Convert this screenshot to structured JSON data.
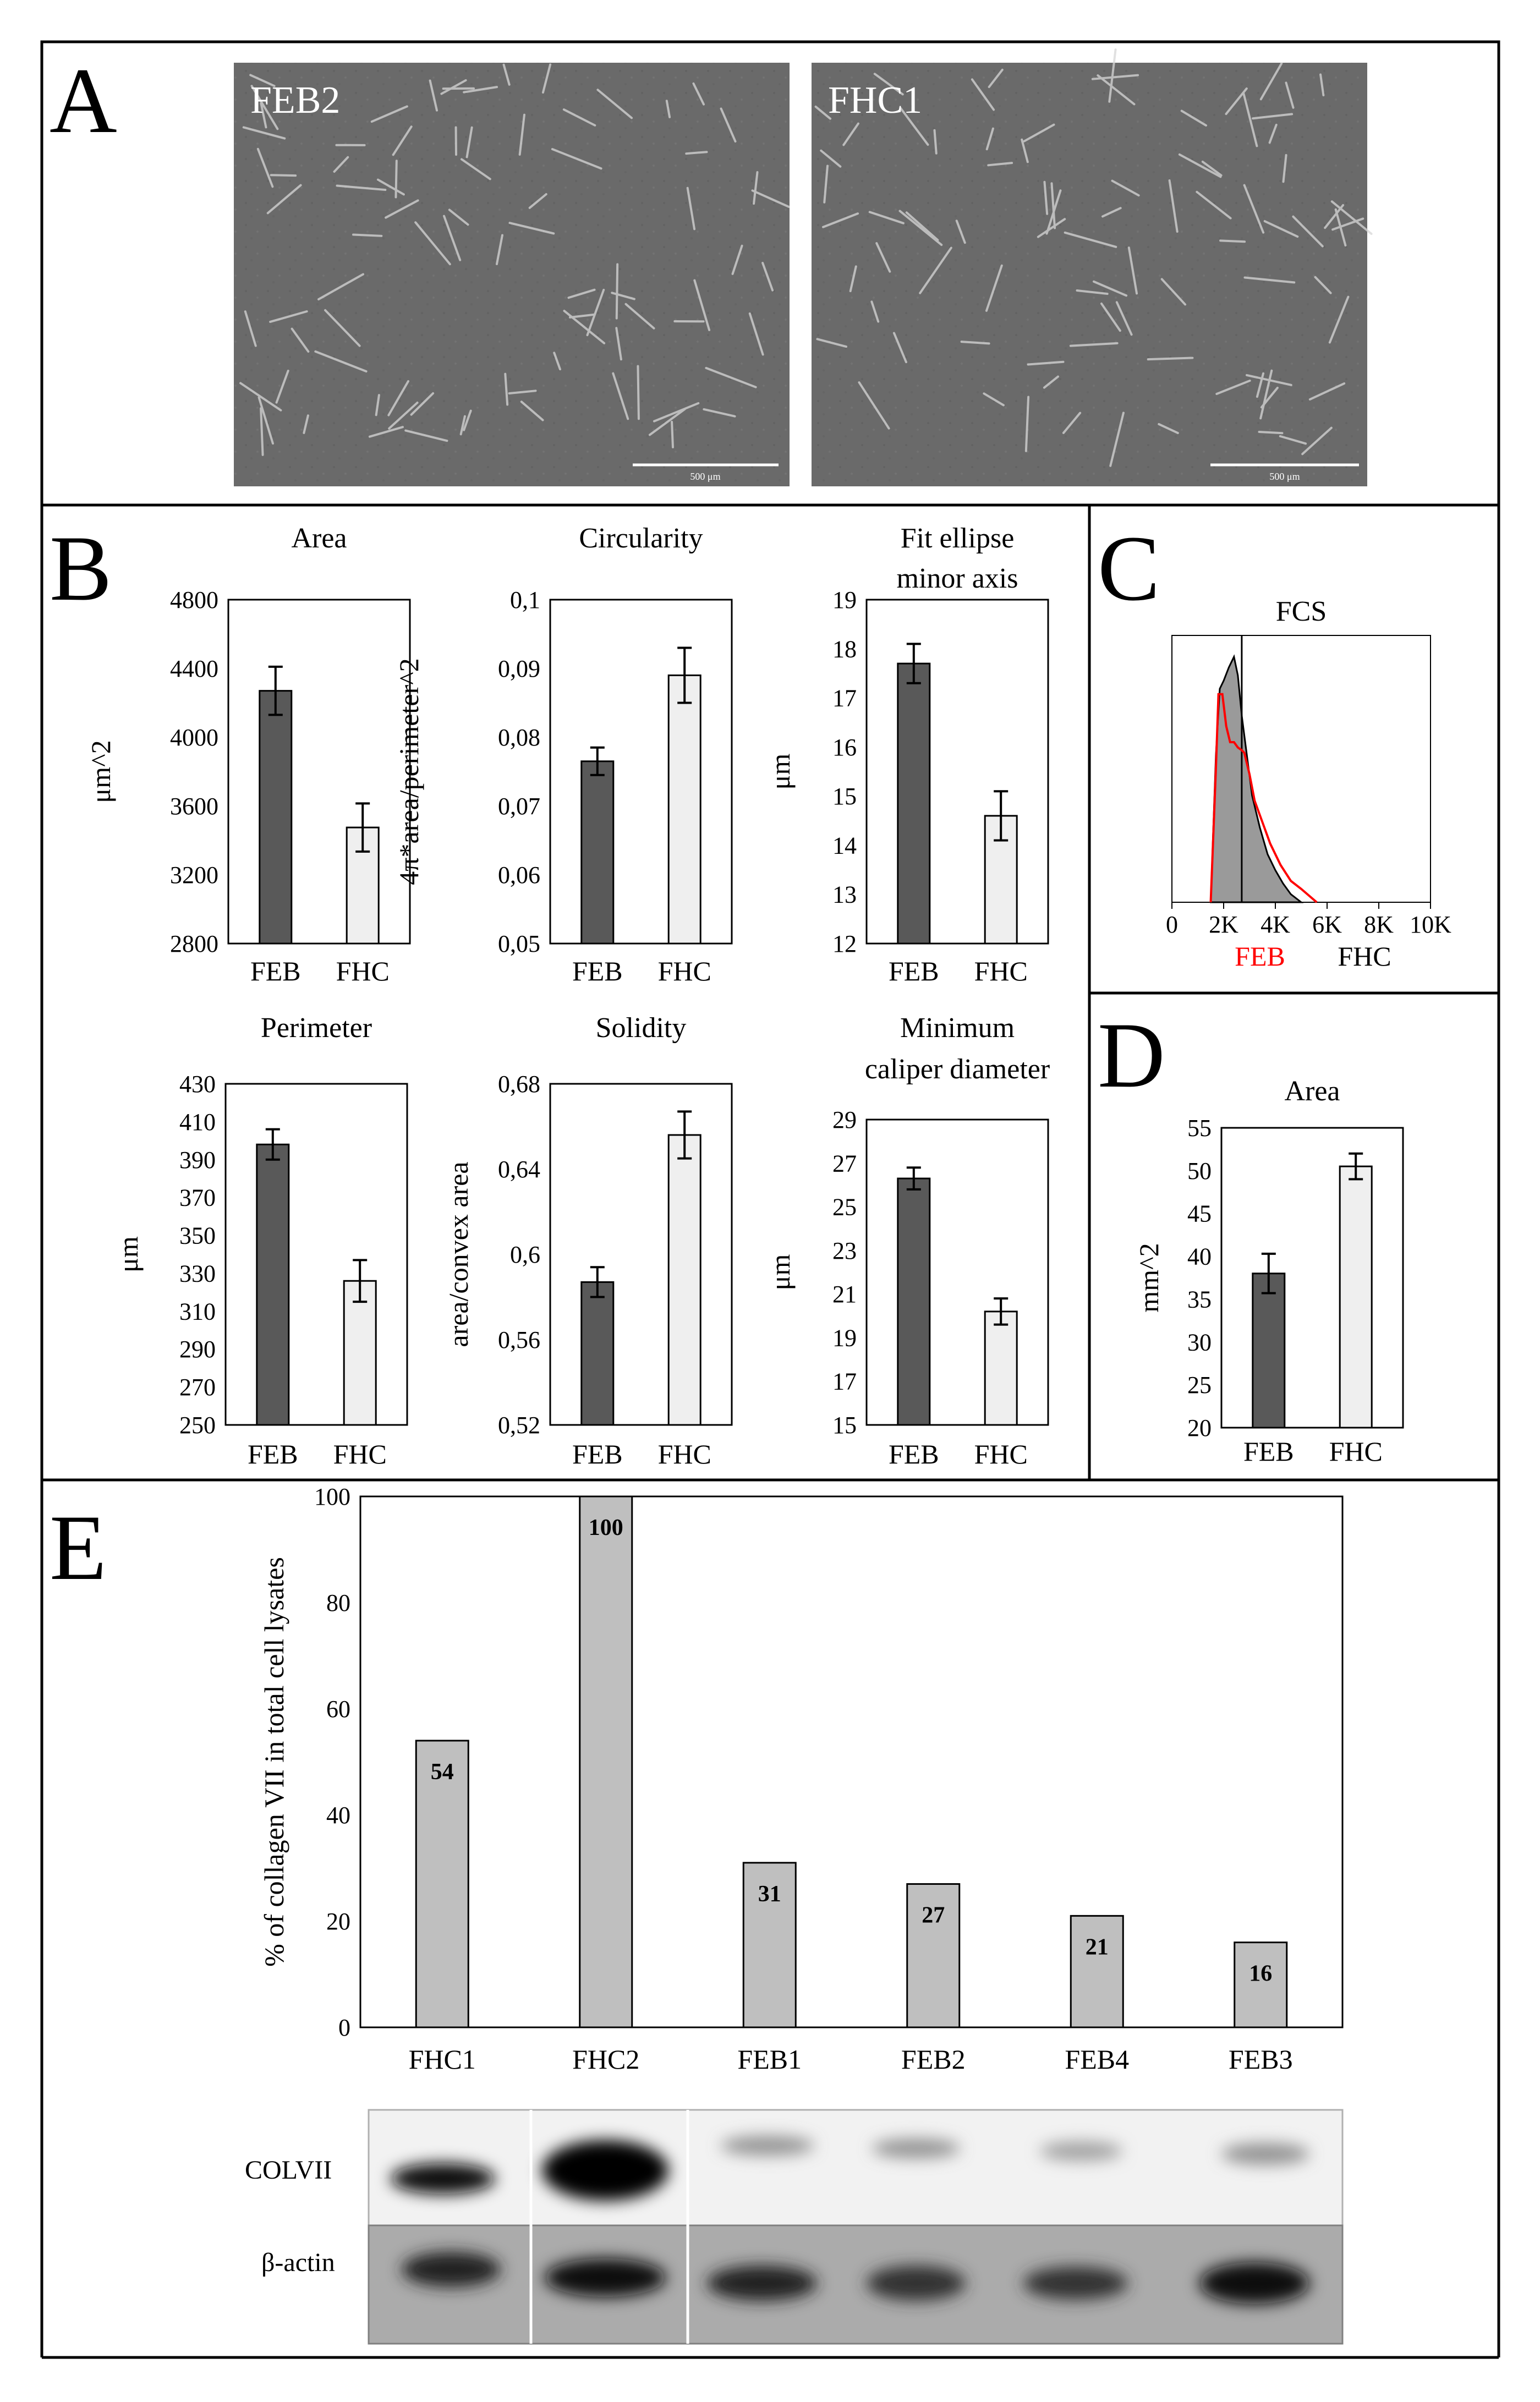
{
  "panels": {
    "A": "A",
    "B": "B",
    "C": "C",
    "D": "D",
    "E": "E"
  },
  "micrographs": [
    {
      "label": "FEB2",
      "scale": "500 μm"
    },
    {
      "label": "FHC1",
      "scale": "500 μm"
    }
  ],
  "group_labels": {
    "feb": "FEB",
    "fhc": "FHC"
  },
  "colors": {
    "feb": "#595959",
    "fhc": "#efefef",
    "hist_feb_line": "#ff0000",
    "e_bar": "#bfbfbf"
  },
  "chart_data": [
    {
      "id": "B1",
      "type": "bar",
      "title": "Area",
      "ylabel": "μm^2",
      "categories": [
        "FEB",
        "FHC"
      ],
      "values": [
        4270,
        3475
      ],
      "errors": [
        140,
        140
      ],
      "ylim": [
        2800,
        4800
      ],
      "ticks": [
        "4800",
        "4400",
        "4000",
        "3600",
        "3200",
        "2800"
      ]
    },
    {
      "id": "B2",
      "type": "bar",
      "title": "Circularity",
      "ylabel": "4π*area/perimeter^2",
      "categories": [
        "FEB",
        "FHC"
      ],
      "values": [
        0.0765,
        0.089
      ],
      "errors": [
        0.002,
        0.004
      ],
      "ylim": [
        0.05,
        0.1
      ],
      "ticks": [
        "0,1",
        "0,09",
        "0,08",
        "0,07",
        "0,06",
        "0,05"
      ]
    },
    {
      "id": "B3",
      "type": "bar",
      "title": "Fit ellipse",
      "title2": "minor axis",
      "ylabel": "μm",
      "categories": [
        "FEB",
        "FHC"
      ],
      "values": [
        17.7,
        14.6
      ],
      "errors": [
        0.4,
        0.5
      ],
      "ylim": [
        12,
        19
      ],
      "ticks": [
        "19",
        "18",
        "17",
        "16",
        "15",
        "14",
        "13",
        "12"
      ]
    },
    {
      "id": "B4",
      "type": "bar",
      "title": "Perimeter",
      "ylabel": "μm",
      "categories": [
        "FEB",
        "FHC"
      ],
      "values": [
        398,
        326
      ],
      "errors": [
        8,
        11
      ],
      "ylim": [
        250,
        430
      ],
      "ticks": [
        "430",
        "410",
        "390",
        "370",
        "350",
        "330",
        "310",
        "290",
        "270",
        "250"
      ]
    },
    {
      "id": "B5",
      "type": "bar",
      "title": "Solidity",
      "ylabel": "area/convex area",
      "categories": [
        "FEB",
        "FHC"
      ],
      "values": [
        0.587,
        0.656
      ],
      "errors": [
        0.007,
        0.011
      ],
      "ylim": [
        0.52,
        0.68
      ],
      "ticks": [
        "0,68",
        "0,64",
        "0,6",
        "0,56",
        "0,52"
      ]
    },
    {
      "id": "B6",
      "type": "bar",
      "title": "Minimum",
      "title2": "caliper diameter",
      "ylabel": "μm",
      "categories": [
        "FEB",
        "FHC"
      ],
      "values": [
        26.3,
        20.2
      ],
      "errors": [
        0.5,
        0.6
      ],
      "ylim": [
        15,
        29
      ],
      "ticks": [
        "29",
        "27",
        "25",
        "23",
        "21",
        "19",
        "17",
        "15"
      ]
    },
    {
      "id": "C",
      "type": "histogram",
      "title": "FCS",
      "xticks": [
        "0",
        "2K",
        "4K",
        "6K",
        "8K",
        "10K"
      ],
      "xlim": [
        0,
        10000
      ],
      "legend": [
        "FEB",
        "FHC"
      ],
      "series": [
        {
          "name": "FHC",
          "style": "filled",
          "x": [
            1500,
            1700,
            1850,
            2000,
            2200,
            2400,
            2550,
            2700,
            2900,
            3100,
            3400,
            3700,
            4000,
            4300,
            4600,
            5000
          ],
          "y": [
            0,
            55,
            80,
            83,
            88,
            92,
            85,
            70,
            55,
            40,
            28,
            18,
            12,
            7,
            3,
            0
          ]
        },
        {
          "name": "FEB",
          "style": "red-line",
          "x": [
            1500,
            1700,
            1800,
            1950,
            2100,
            2250,
            2400,
            2550,
            2700,
            2800,
            3000,
            3200,
            3500,
            3800,
            4200,
            4600,
            5000,
            5600
          ],
          "y": [
            0,
            50,
            78,
            78,
            66,
            60,
            60,
            58,
            57,
            56,
            48,
            38,
            30,
            22,
            14,
            8,
            5,
            0
          ]
        }
      ]
    },
    {
      "id": "D",
      "type": "bar",
      "title": "Area",
      "ylabel": "mm^2",
      "categories": [
        "FEB",
        "FHC"
      ],
      "values": [
        38,
        50.5
      ],
      "errors": [
        2.3,
        1.5
      ],
      "ylim": [
        20,
        55
      ],
      "ticks": [
        "55",
        "50",
        "45",
        "40",
        "35",
        "30",
        "25",
        "20"
      ]
    },
    {
      "id": "E",
      "type": "bar",
      "ylabel": "% of collagen VII in total cell lysates",
      "categories": [
        "FHC1",
        "FHC2",
        "FEB1",
        "FEB2",
        "FEB4",
        "FEB3"
      ],
      "values": [
        54,
        100,
        31,
        27,
        21,
        16
      ],
      "labels": [
        "54",
        "100",
        "31",
        "27",
        "21",
        "16"
      ],
      "ylim": [
        0,
        100
      ],
      "ticks": [
        "100",
        "80",
        "60",
        "40",
        "20",
        "0"
      ]
    }
  ],
  "blot": {
    "rows": [
      "COLVII",
      "β-actin"
    ]
  }
}
